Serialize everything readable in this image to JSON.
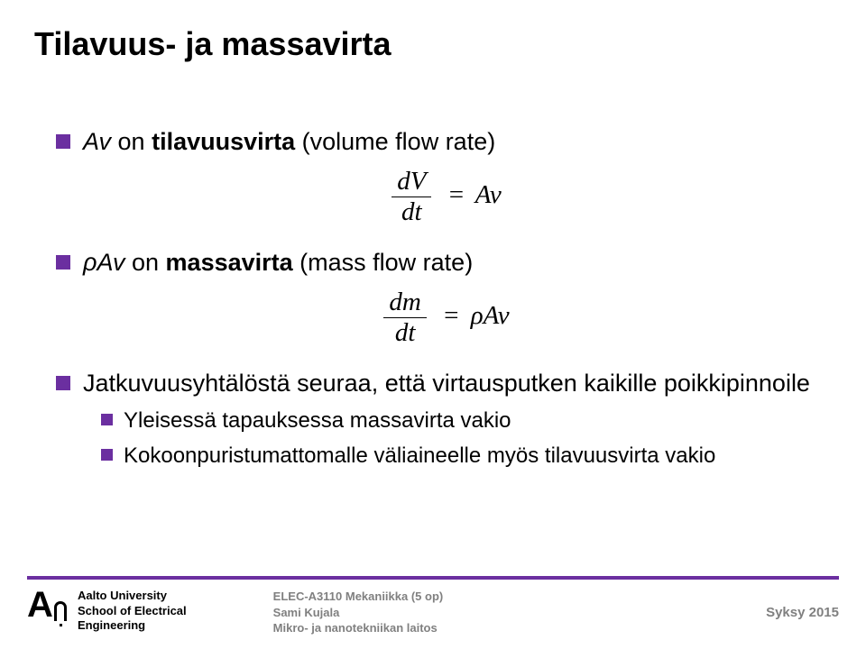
{
  "colors": {
    "accent": "#6b2fa0",
    "text": "#000000",
    "muted": "#808080",
    "bg": "#ffffff"
  },
  "title": "Tilavuus- ja massavirta",
  "bullets": {
    "b1_pre": "Av",
    "b1_mid": " on ",
    "b1_bold": "tilavuusvirta",
    "b1_post": " (volume flow rate)",
    "b2_pre": "ρAv",
    "b2_mid": " on ",
    "b2_bold": "massavirta",
    "b2_post": " (mass flow rate)",
    "b3": "Jatkuvuusyhtälöstä seuraa, että virtausputken kaikille poikkipinnoile",
    "s1": "Yleisessä tapauksessa massavirta vakio",
    "s2": "Kokoonpuristumattomalle väliaineelle myös tilavuusvirta vakio"
  },
  "eq1": {
    "num": "dV",
    "den": "dt",
    "op": "=",
    "rhs": "Av"
  },
  "eq2": {
    "num": "dm",
    "den": "dt",
    "op": "=",
    "rhs": "ρAv"
  },
  "footer": {
    "uni1": "Aalto University",
    "uni2": "School of Electrical",
    "uni3": "Engineering",
    "course": "ELEC-A3110 Mekaniikka (5 op)",
    "author": "Sami Kujala",
    "dept": "Mikro- ja nanotekniikan laitos",
    "term": "Syksy 2015"
  }
}
